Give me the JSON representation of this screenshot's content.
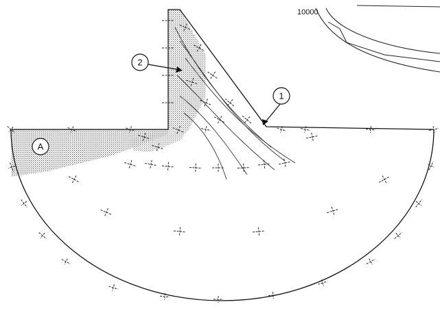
{
  "figure": {
    "callouts": [
      {
        "id": "callout-1",
        "text": "1"
      },
      {
        "id": "callout-2",
        "text": "2"
      },
      {
        "id": "callout-a",
        "text": "A"
      }
    ],
    "inset_contour_label": "10000"
  }
}
